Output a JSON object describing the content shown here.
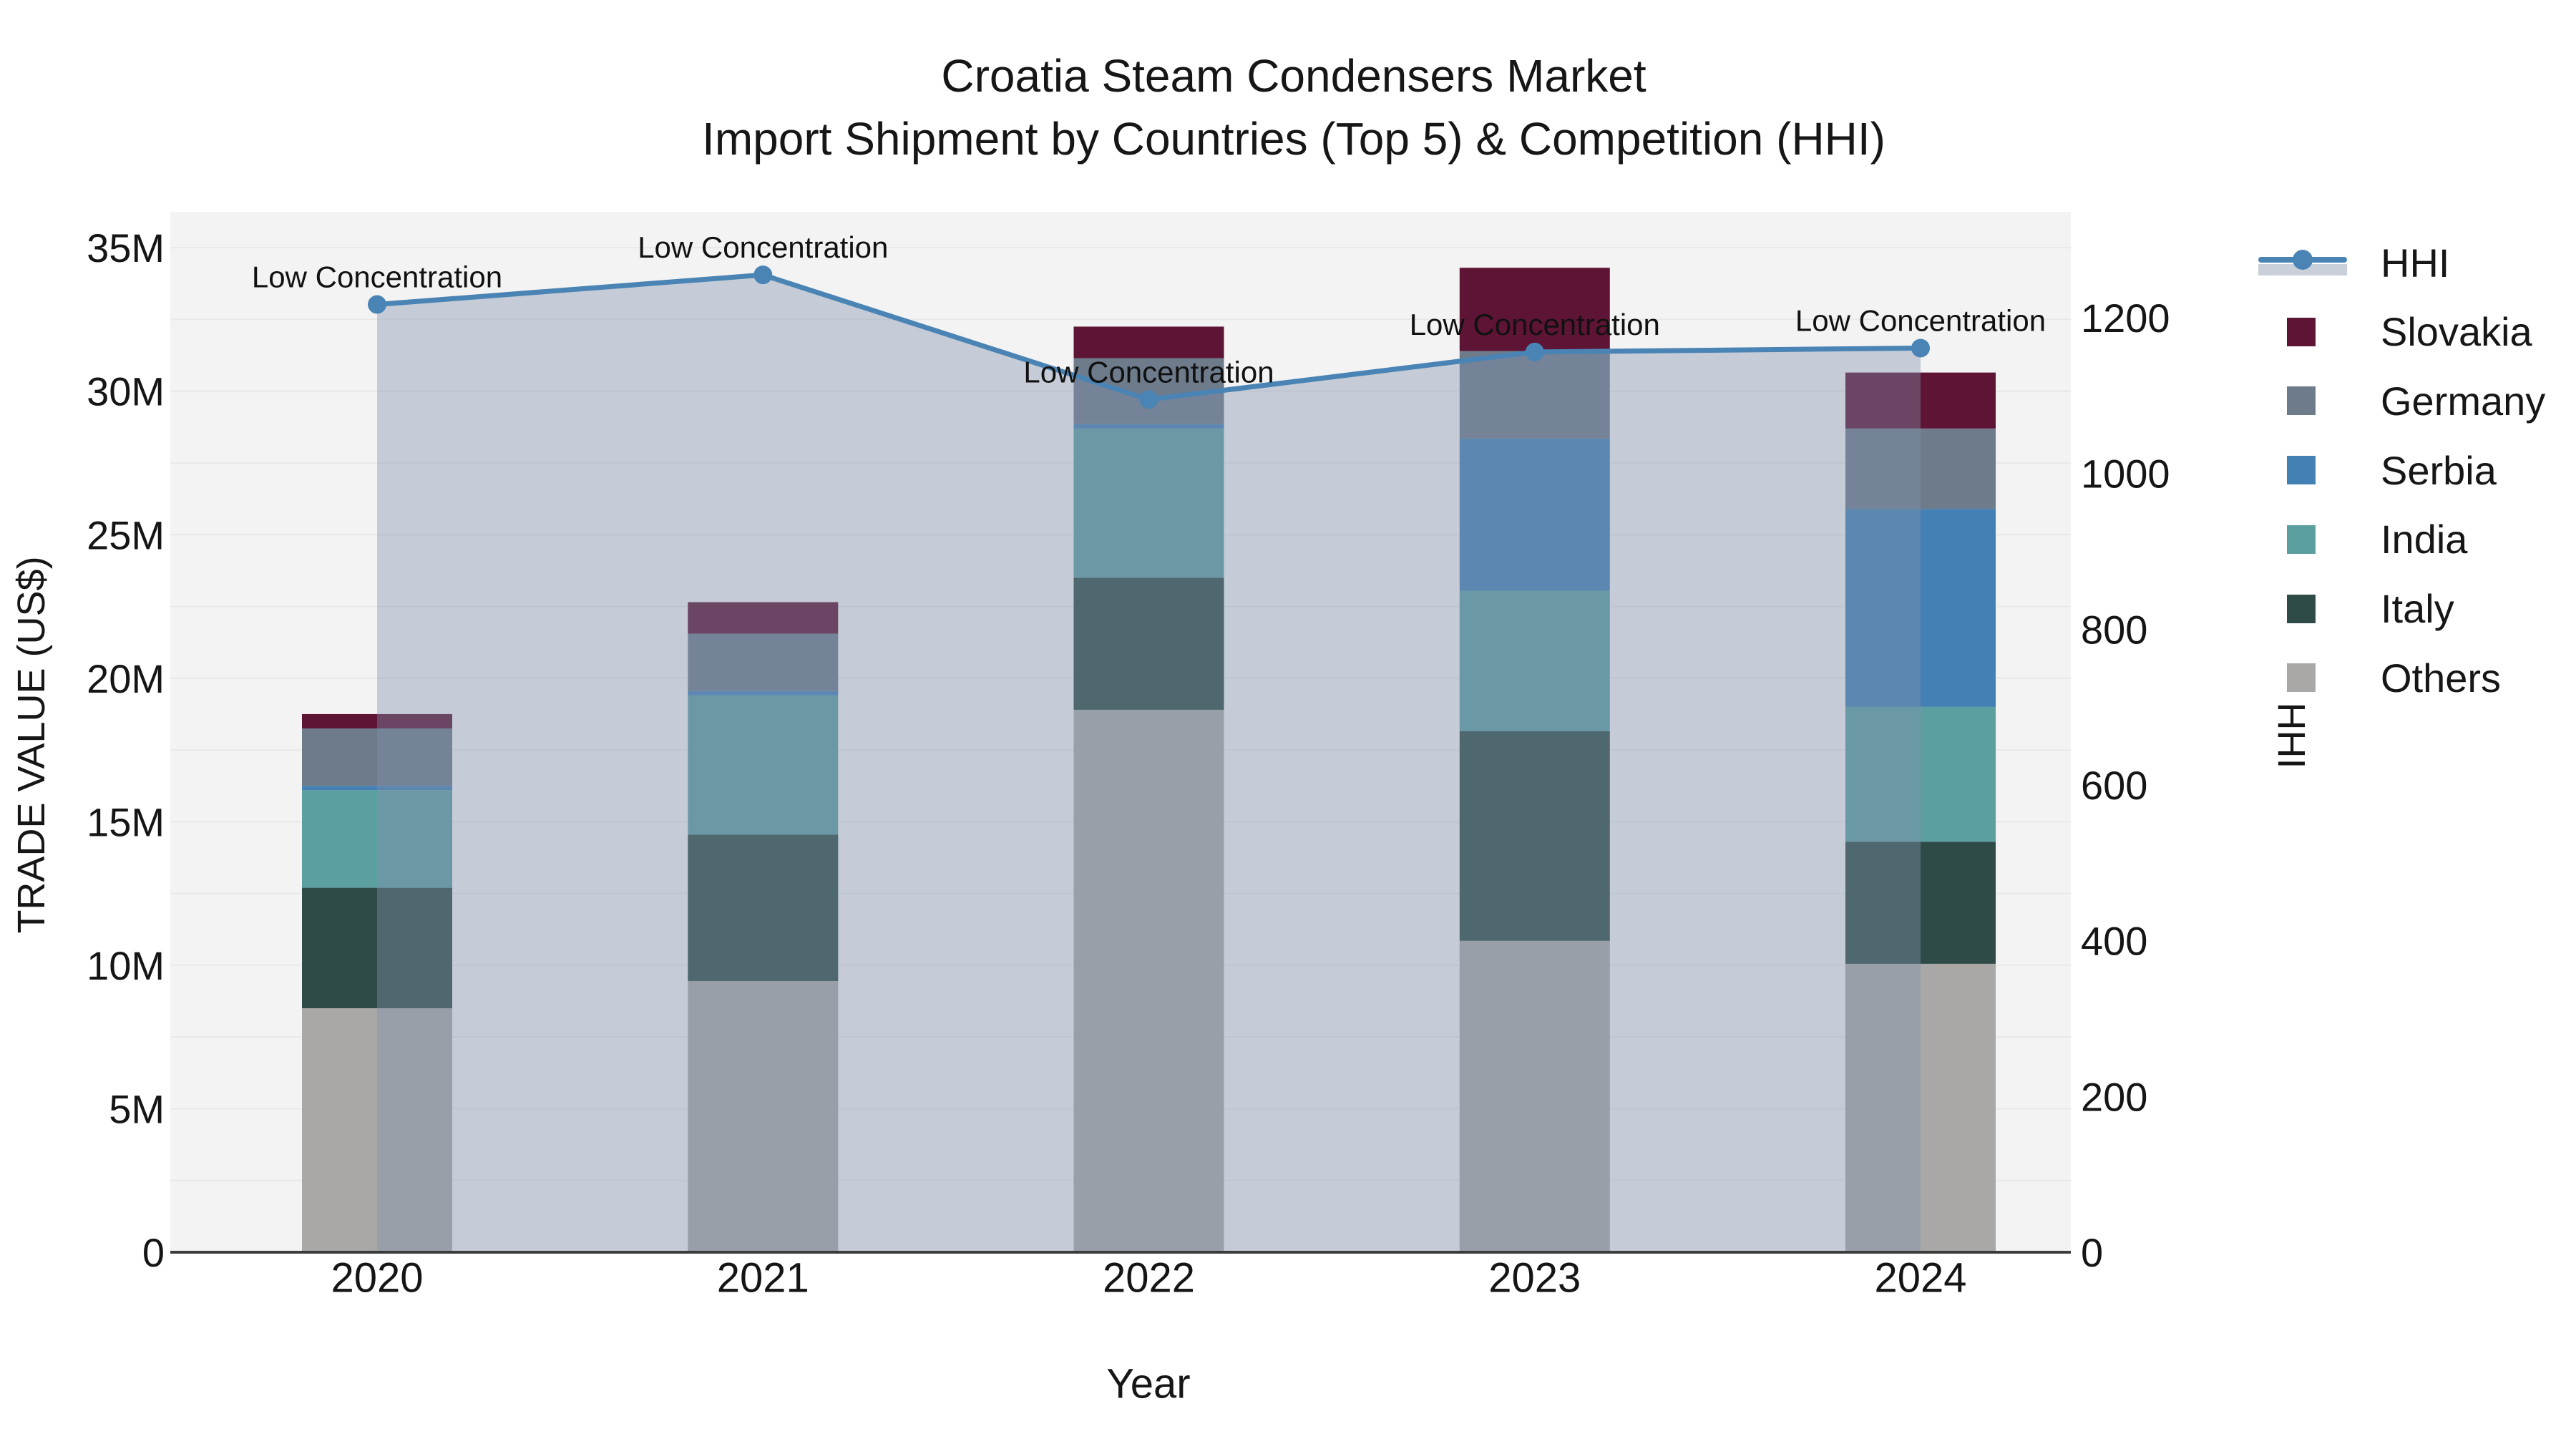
{
  "title": {
    "line1": "Croatia Steam Condensers Market",
    "line2": "Import Shipment by Countries (Top 5) & Competition (HHI)"
  },
  "chart_data": {
    "type": "combo: stacked-bar + line (dual axis)",
    "categories": [
      "2020",
      "2021",
      "2022",
      "2023",
      "2024"
    ],
    "unit": "US$ millions (left axis), HHI index (right axis)",
    "stack_order_bottom_to_top": [
      "Others",
      "Italy",
      "India",
      "Serbia",
      "Germany",
      "Slovakia"
    ],
    "series": [
      {
        "name": "Slovakia",
        "color": "#5E1434",
        "values_musd": [
          0.5,
          1.1,
          1.1,
          2.9,
          1.95
        ]
      },
      {
        "name": "Germany",
        "color": "#6E7B8B",
        "values_musd": [
          2.0,
          2.0,
          2.3,
          3.05,
          2.8
        ]
      },
      {
        "name": "Serbia",
        "color": "#4381B5",
        "values_musd": [
          0.15,
          0.15,
          0.15,
          5.3,
          6.9
        ]
      },
      {
        "name": "India",
        "color": "#5C9FA1",
        "values_musd": [
          3.4,
          4.85,
          5.2,
          4.9,
          4.7
        ]
      },
      {
        "name": "Italy",
        "color": "#2F4B47",
        "values_musd": [
          4.2,
          5.1,
          4.6,
          7.3,
          4.25
        ]
      },
      {
        "name": "Others",
        "color": "#A9A8A6",
        "values_musd": [
          8.5,
          9.45,
          18.9,
          10.85,
          10.05
        ]
      }
    ],
    "totals_musd": [
      18.75,
      22.65,
      32.25,
      34.3,
      30.65
    ],
    "line": {
      "name": "HHI",
      "color": "#4A84B4",
      "fill_color": "rgba(128,145,172,0.40)",
      "axis": "right",
      "values": [
        1217,
        1255,
        1095,
        1156,
        1161
      ]
    },
    "annotations": [
      {
        "text": "Low Concentration",
        "category": "2020"
      },
      {
        "text": "Low Concentration",
        "category": "2021"
      },
      {
        "text": "Low Concentration",
        "category": "2022"
      },
      {
        "text": "Low Concentration",
        "category": "2023"
      },
      {
        "text": "Low Concentration",
        "category": "2024"
      }
    ],
    "left_axis": {
      "title": "TRADE VALUE (US$)",
      "tick_labels": [
        "0",
        "5M",
        "10M",
        "15M",
        "20M",
        "25M",
        "30M",
        "35M"
      ],
      "tick_values_musd": [
        0,
        5,
        10,
        15,
        20,
        25,
        30,
        35
      ],
      "range_musd": [
        0,
        36.3
      ]
    },
    "right_axis": {
      "title": "HHI",
      "tick_labels": [
        "0",
        "200",
        "400",
        "600",
        "800",
        "1000",
        "1200"
      ],
      "tick_values": [
        0,
        200,
        400,
        600,
        800,
        1000,
        1200
      ],
      "range": [
        0,
        1337
      ]
    },
    "x_axis": {
      "title": "Year"
    },
    "layout_hints": {
      "grid": "horizontal, every 2.5M",
      "legend_position": "right",
      "plot_bg": "#F4F3F3",
      "grid_color": "#E8E8E8",
      "baseline_color": "#3C3C3C"
    }
  },
  "legend": {
    "items": [
      {
        "label": "HHI",
        "type": "line",
        "color": "#4A84B4"
      },
      {
        "label": "Slovakia",
        "type": "square",
        "color": "#5E1434"
      },
      {
        "label": "Germany",
        "type": "square",
        "color": "#6E7B8B"
      },
      {
        "label": "Serbia",
        "type": "square",
        "color": "#4381B5"
      },
      {
        "label": "India",
        "type": "square",
        "color": "#5C9FA1"
      },
      {
        "label": "Italy",
        "type": "square",
        "color": "#2F4B47"
      },
      {
        "label": "Others",
        "type": "square",
        "color": "#A9A8A6"
      }
    ]
  }
}
